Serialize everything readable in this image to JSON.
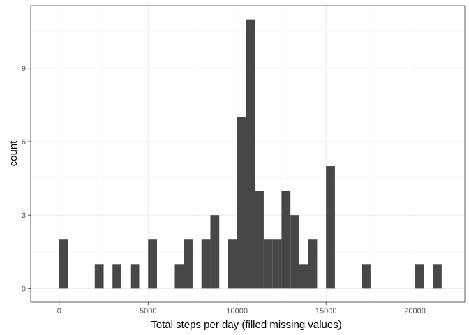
{
  "chart_data": {
    "type": "bar",
    "subtype": "histogram",
    "title": "",
    "xlabel": "Total steps per day (filled missing values)",
    "ylabel": "count",
    "xlim": [
      -1600,
      22800
    ],
    "ylim": [
      -0.56,
      11.56
    ],
    "xticks": [
      0,
      5000,
      10000,
      15000,
      20000
    ],
    "yticks": [
      0,
      3,
      6,
      9
    ],
    "xminor": [
      2500,
      7500,
      12500,
      17500
    ],
    "yminor": [
      1.5,
      4.5,
      7.5,
      10.5
    ],
    "grid": true,
    "legend": "none",
    "bar_color": "#474747",
    "binwidth": 500,
    "bin_starts": [
      0,
      2000,
      3000,
      4000,
      5000,
      6500,
      7000,
      8000,
      8500,
      9500,
      10000,
      10500,
      11000,
      11500,
      12000,
      12500,
      13000,
      13500,
      14000,
      15000,
      17000,
      20000,
      21000
    ],
    "counts": [
      2,
      1,
      1,
      1,
      2,
      1,
      2,
      2,
      3,
      2,
      7,
      11,
      4,
      2,
      2,
      4,
      3,
      1,
      2,
      5,
      1,
      1,
      1
    ]
  }
}
